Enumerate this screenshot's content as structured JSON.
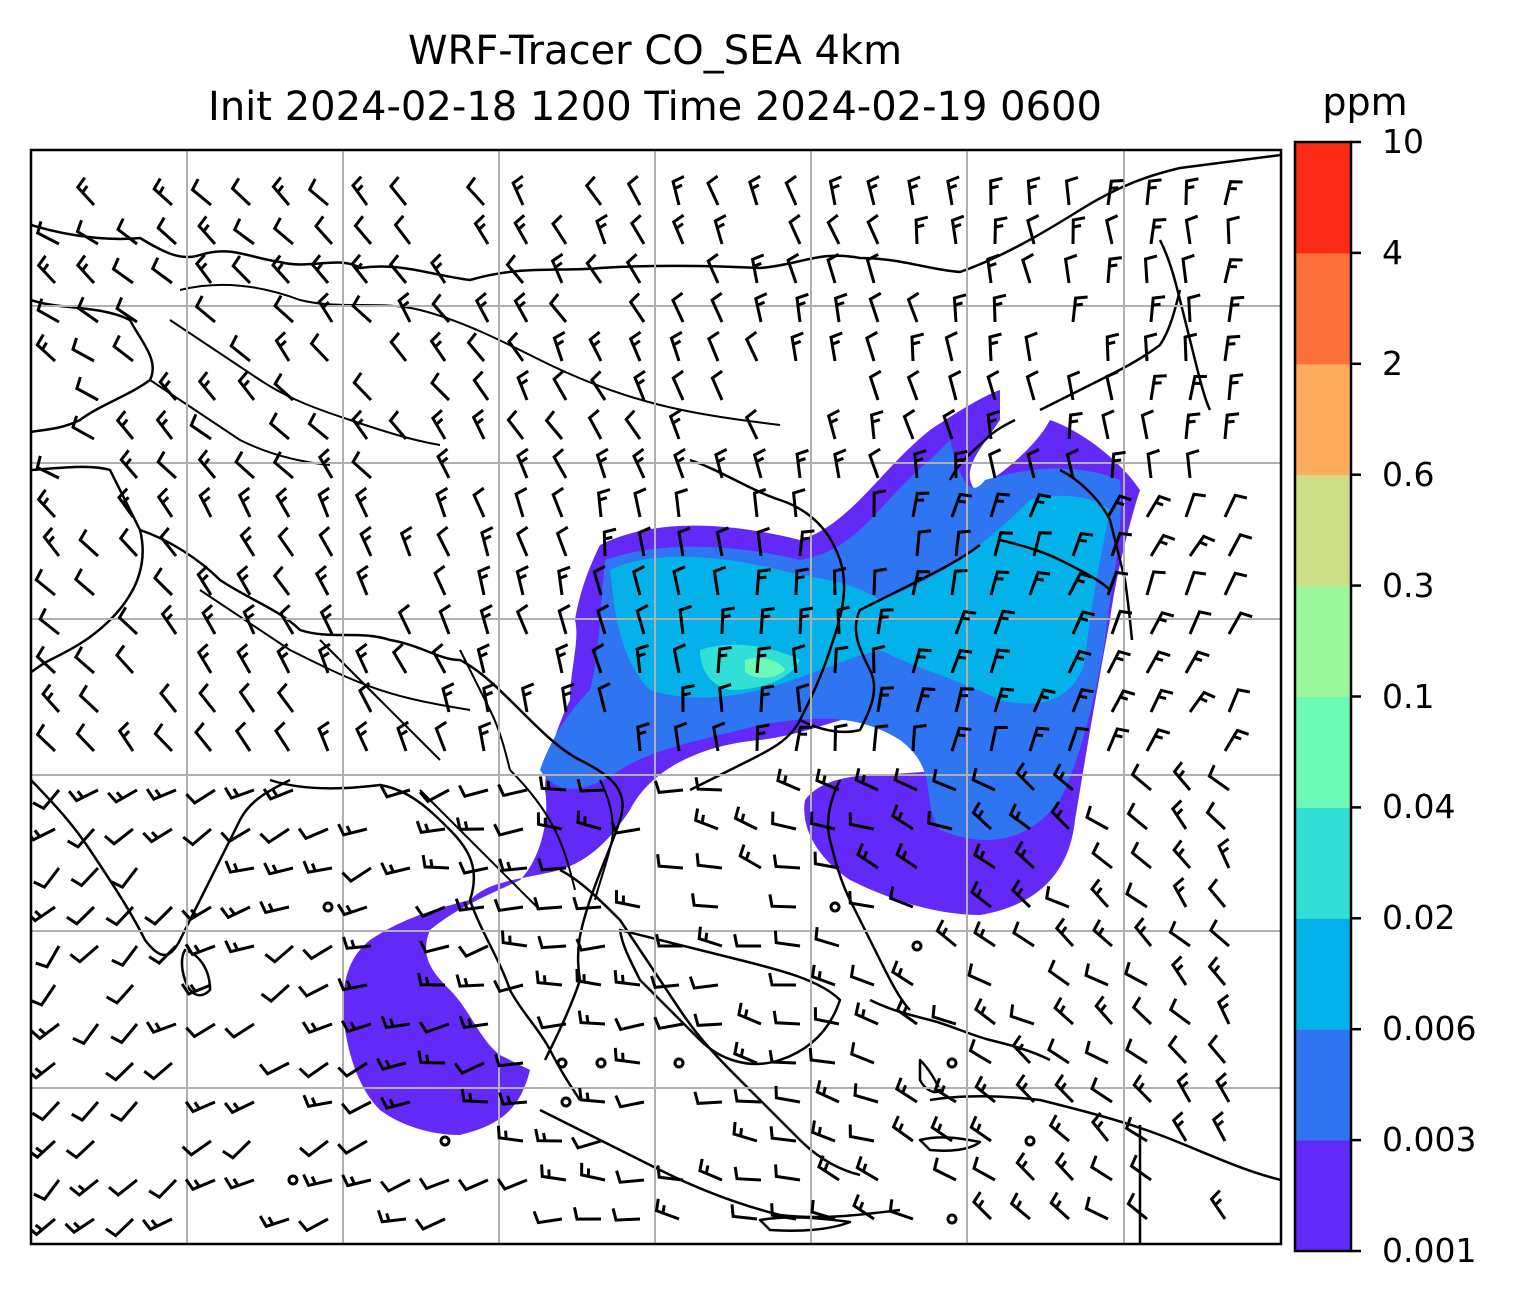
{
  "title": {
    "line1": "WRF-Tracer CO_SEA 4km",
    "line2": "Init 2024-02-18 1200 Time 2024-02-19 0600"
  },
  "colorbar": {
    "unit": "ppm",
    "levels": [
      "0.001",
      "0.003",
      "0.006",
      "0.02",
      "0.04",
      "0.1",
      "0.3",
      "0.6",
      "2",
      "4",
      "10"
    ],
    "colors": [
      "#6229f7",
      "#2f74f0",
      "#04b2e9",
      "#31dfd6",
      "#6bf9b5",
      "#9bf89a",
      "#cede86",
      "#feab5d",
      "#fd6f3a",
      "#f92a16"
    ]
  },
  "map": {
    "grid": "on",
    "layers": [
      "coastlines",
      "country-borders",
      "wind-barbs",
      "co-tracer-concentration"
    ]
  }
}
